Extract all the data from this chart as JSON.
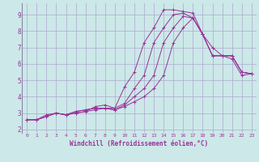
{
  "xlabel": "Windchill (Refroidissement éolien,°C)",
  "ylabel": "",
  "xlim": [
    -0.5,
    23.5
  ],
  "ylim": [
    1.8,
    9.7
  ],
  "bg_color": "#cce8e8",
  "grid_color": "#aaaacc",
  "line_color": "#993399",
  "lines": [
    {
      "x": [
        0,
        1,
        2,
        3,
        4,
        5,
        6,
        7,
        8,
        9,
        10,
        11,
        12,
        13,
        14,
        15,
        16,
        17,
        18,
        19,
        20,
        21,
        22,
        23
      ],
      "y": [
        2.6,
        2.6,
        2.8,
        3.0,
        2.9,
        3.0,
        3.1,
        3.2,
        3.3,
        3.3,
        4.6,
        5.5,
        7.3,
        8.2,
        9.3,
        9.3,
        9.2,
        9.1,
        7.8,
        7.0,
        6.5,
        6.3,
        5.3,
        5.4
      ]
    },
    {
      "x": [
        0,
        1,
        2,
        3,
        4,
        5,
        6,
        7,
        8,
        9,
        10,
        11,
        12,
        13,
        14,
        15,
        16,
        17,
        18,
        19,
        20,
        21,
        22,
        23
      ],
      "y": [
        2.6,
        2.6,
        2.9,
        3.0,
        2.9,
        3.0,
        3.1,
        3.4,
        3.5,
        3.3,
        3.6,
        4.5,
        5.3,
        7.3,
        8.2,
        9.0,
        9.1,
        8.8,
        7.8,
        6.5,
        6.5,
        6.5,
        5.5,
        5.4
      ]
    },
    {
      "x": [
        0,
        1,
        2,
        3,
        4,
        5,
        6,
        7,
        8,
        9,
        10,
        11,
        12,
        13,
        14,
        15,
        16,
        17,
        18,
        19,
        20,
        21,
        22,
        23
      ],
      "y": [
        2.6,
        2.6,
        2.8,
        3.0,
        2.9,
        3.1,
        3.2,
        3.3,
        3.3,
        3.2,
        3.5,
        4.0,
        4.5,
        5.3,
        7.3,
        8.2,
        8.9,
        8.8,
        7.8,
        6.5,
        6.5,
        6.5,
        5.5,
        5.4
      ]
    },
    {
      "x": [
        0,
        1,
        2,
        3,
        4,
        5,
        6,
        7,
        8,
        9,
        10,
        11,
        12,
        13,
        14,
        15,
        16,
        17,
        18,
        19,
        20,
        21,
        22,
        23
      ],
      "y": [
        2.6,
        2.6,
        2.8,
        3.0,
        2.9,
        3.1,
        3.2,
        3.3,
        3.3,
        3.2,
        3.4,
        3.7,
        4.0,
        4.5,
        5.3,
        7.3,
        8.2,
        8.8,
        7.8,
        6.5,
        6.5,
        6.5,
        5.5,
        5.4
      ]
    }
  ],
  "xtick_labels": [
    "0",
    "1",
    "2",
    "3",
    "4",
    "5",
    "6",
    "7",
    "8",
    "9",
    "10",
    "11",
    "12",
    "13",
    "14",
    "15",
    "16",
    "17",
    "18",
    "19",
    "20",
    "21",
    "22",
    "23"
  ],
  "ytick_labels": [
    "2",
    "3",
    "4",
    "5",
    "6",
    "7",
    "8",
    "9"
  ],
  "ytick_vals": [
    2,
    3,
    4,
    5,
    6,
    7,
    8,
    9
  ],
  "xtick_fontsize": 4.5,
  "ytick_fontsize": 5.5,
  "xlabel_fontsize": 5.5,
  "marker": "+",
  "markersize": 2.5,
  "linewidth": 0.7
}
